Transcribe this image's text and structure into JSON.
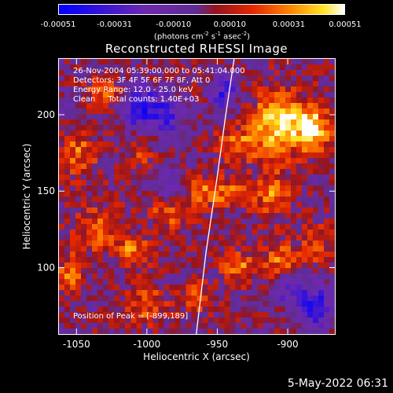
{
  "chart_data": {
    "type": "heatmap",
    "title": "Reconstructed RHESSI Image",
    "xlabel": "Heliocentric X (arcsec)",
    "ylabel": "Heliocentric Y (arcsec)",
    "xlim": [
      -1063,
      -866
    ],
    "ylim": [
      56,
      237
    ],
    "x_ticks": [
      -1050,
      -1000,
      -950,
      -900
    ],
    "y_ticks": [
      100,
      150,
      200
    ],
    "annotations": {
      "time_range": "26-Nov-2004 05:39:00.000 to 05:41:04.000",
      "detectors": "Detectors: 3F 4F 5F 6F 7F 8F, Att 0",
      "energy": "Energy Range: 12.0 - 25.0 keV",
      "clean": "Clean     Total counts: 1.40E+03",
      "peak": "Position of Peak = [-899,189]"
    },
    "colorbar": {
      "min": -0.00051,
      "max": 0.00051,
      "tick_labels": [
        "-0.00051",
        "-0.00031",
        "-0.00010",
        "0.00010",
        "0.00031",
        "0.00051"
      ],
      "tick_values": [
        -0.00051,
        -0.00031,
        -0.0001,
        0.0001,
        0.00031,
        0.00051
      ],
      "units": "(photons cm",
      "units_sup1": "-2",
      "units_mid": " s",
      "units_sup2": "-1",
      "units_end": " asec",
      "units_sup3": "-2",
      "units_close": ")"
    },
    "peak": {
      "x": -899,
      "y": 189
    },
    "limb_curve": [
      [
        -965,
        56
      ],
      [
        -958,
        110
      ],
      [
        -950,
        160
      ],
      [
        -944,
        200
      ],
      [
        -938,
        237
      ]
    ],
    "hotspots": [
      {
        "x": -905,
        "y": 195,
        "amp": 1.0,
        "rx": 18,
        "ry": 20
      },
      {
        "x": -880,
        "y": 190,
        "amp": 0.85,
        "rx": 12,
        "ry": 14
      },
      {
        "x": -935,
        "y": 180,
        "amp": 0.55,
        "rx": 14,
        "ry": 12
      },
      {
        "x": -910,
        "y": 148,
        "amp": 0.6,
        "rx": 12,
        "ry": 14
      },
      {
        "x": -940,
        "y": 148,
        "amp": 0.5,
        "rx": 14,
        "ry": 10
      },
      {
        "x": -960,
        "y": 150,
        "amp": 0.45,
        "rx": 12,
        "ry": 10
      },
      {
        "x": -985,
        "y": 135,
        "amp": 0.45,
        "rx": 14,
        "ry": 12
      },
      {
        "x": -1050,
        "y": 175,
        "amp": 0.5,
        "rx": 14,
        "ry": 16
      },
      {
        "x": -1030,
        "y": 215,
        "amp": 0.45,
        "rx": 14,
        "ry": 10
      },
      {
        "x": -1035,
        "y": 125,
        "amp": 0.5,
        "rx": 16,
        "ry": 14
      },
      {
        "x": -1010,
        "y": 110,
        "amp": 0.55,
        "rx": 12,
        "ry": 10
      },
      {
        "x": -1055,
        "y": 95,
        "amp": 0.5,
        "rx": 10,
        "ry": 14
      },
      {
        "x": -1000,
        "y": 75,
        "amp": 0.45,
        "rx": 14,
        "ry": 12
      },
      {
        "x": -935,
        "y": 100,
        "amp": 0.6,
        "rx": 12,
        "ry": 10
      },
      {
        "x": -905,
        "y": 105,
        "amp": 0.55,
        "rx": 12,
        "ry": 12
      },
      {
        "x": -880,
        "y": 115,
        "amp": 0.45,
        "rx": 10,
        "ry": 12
      },
      {
        "x": -965,
        "y": 80,
        "amp": 0.45,
        "rx": 10,
        "ry": 10
      },
      {
        "x": -1005,
        "y": 175,
        "amp": 0.4,
        "rx": 10,
        "ry": 10
      }
    ],
    "coldspots": [
      {
        "x": -1005,
        "y": 205,
        "amp": 0.9,
        "rx": 14,
        "ry": 14
      },
      {
        "x": -985,
        "y": 200,
        "amp": 0.6,
        "rx": 10,
        "ry": 14
      },
      {
        "x": -880,
        "y": 75,
        "amp": 0.9,
        "rx": 12,
        "ry": 14
      },
      {
        "x": -900,
        "y": 85,
        "amp": 0.5,
        "rx": 10,
        "ry": 10
      },
      {
        "x": -985,
        "y": 155,
        "amp": 0.5,
        "rx": 10,
        "ry": 10
      },
      {
        "x": -945,
        "y": 215,
        "amp": 0.7,
        "rx": 10,
        "ry": 12
      },
      {
        "x": -1055,
        "y": 205,
        "amp": 0.4,
        "rx": 8,
        "ry": 8
      }
    ]
  },
  "footer": {
    "timestamp": "5-May-2022 06:31"
  }
}
